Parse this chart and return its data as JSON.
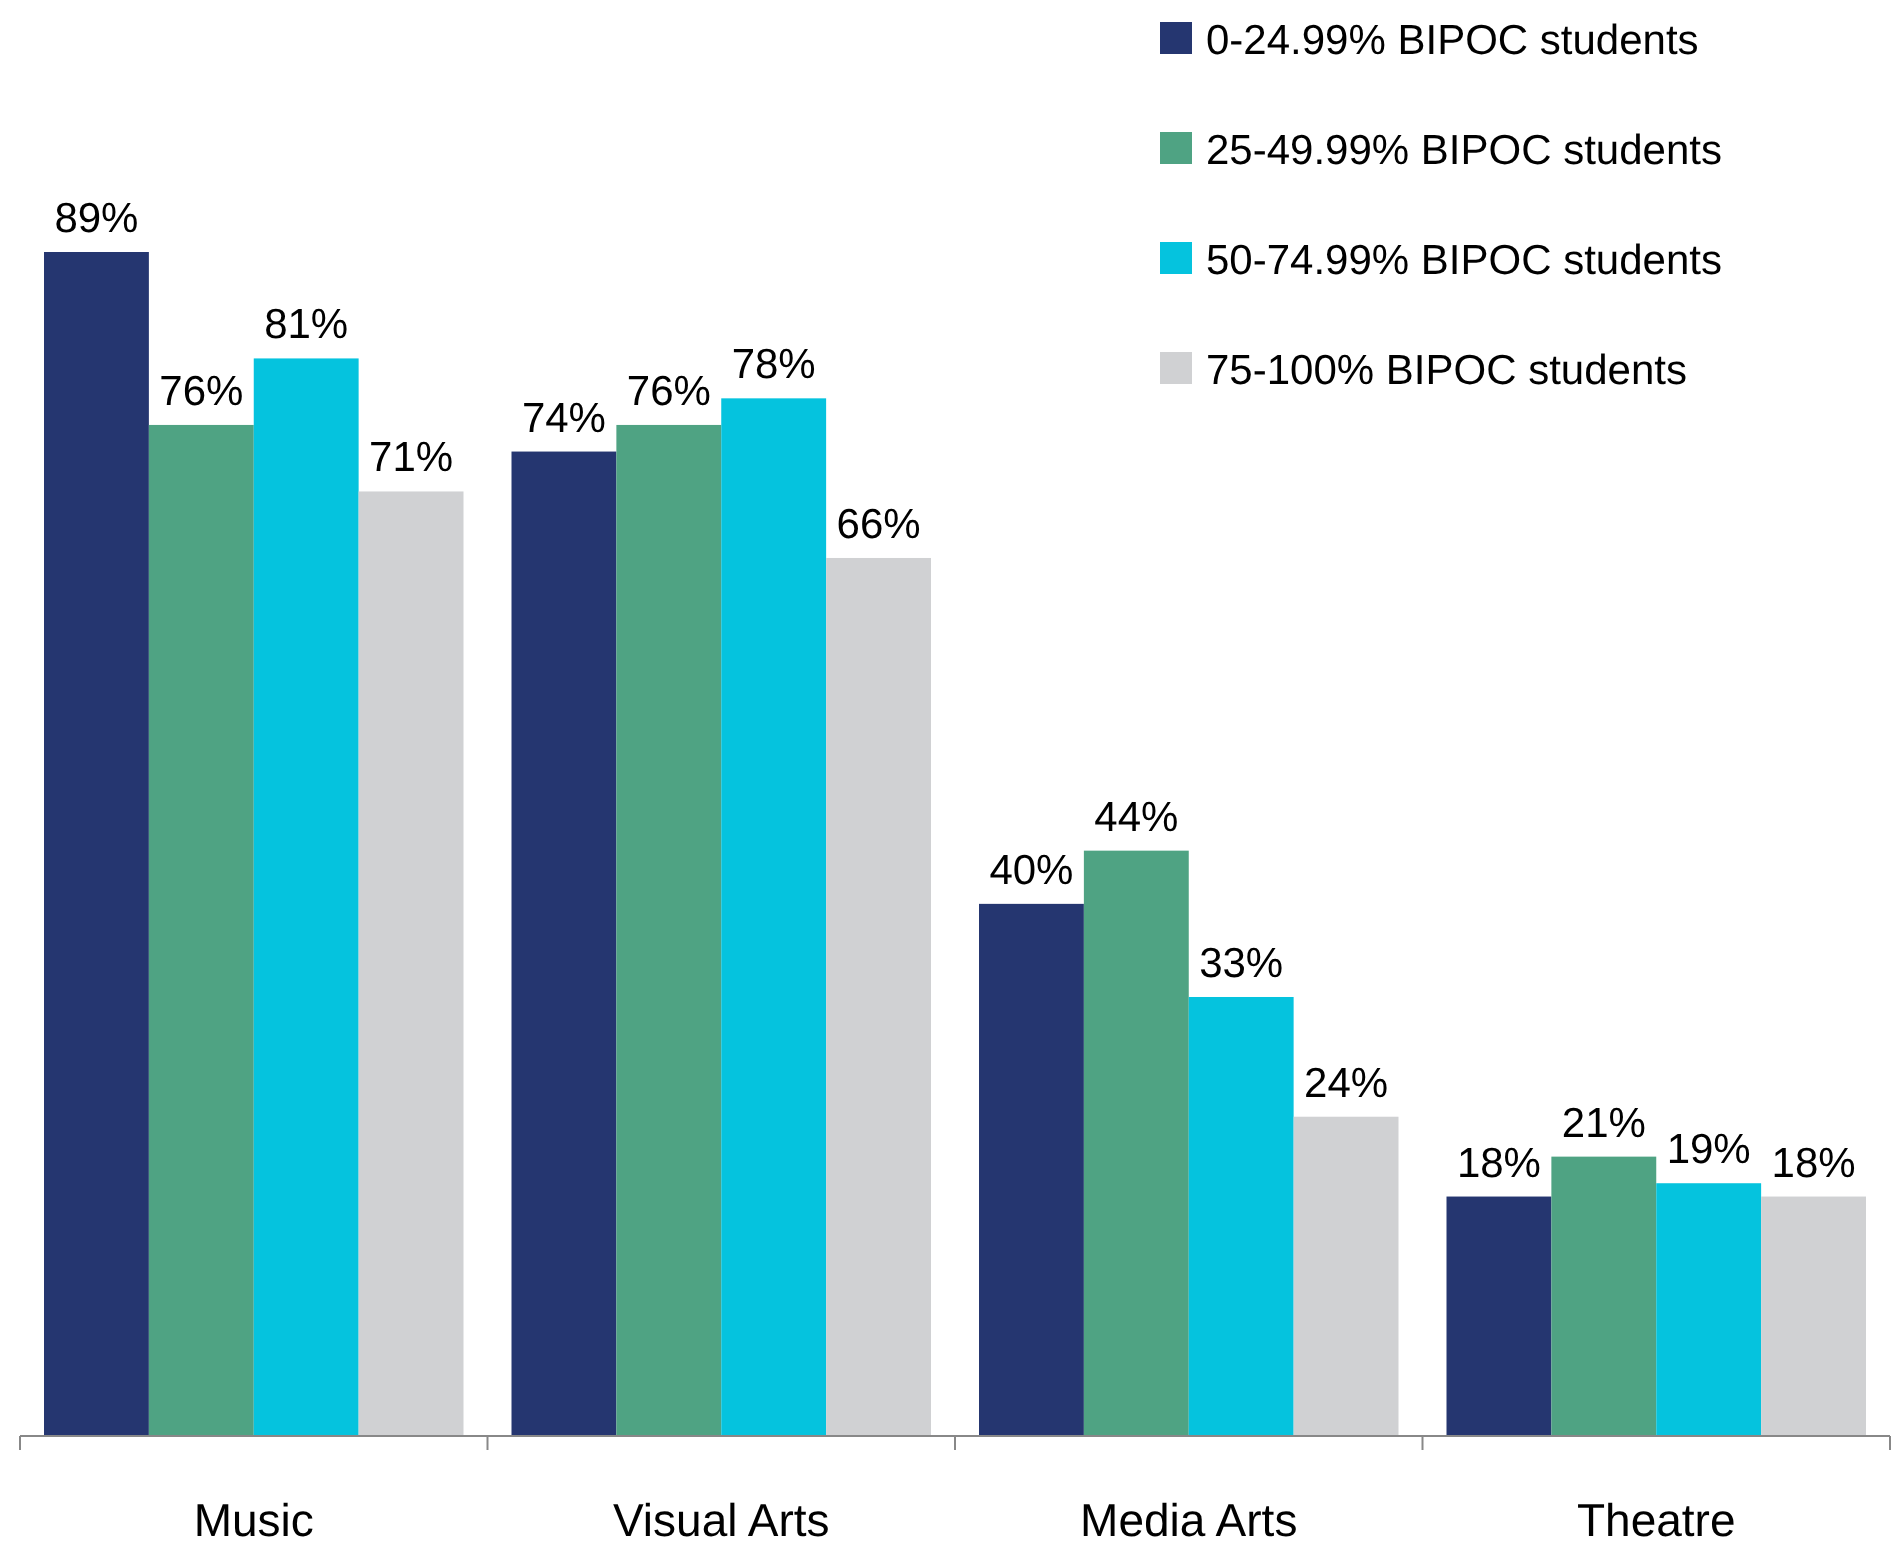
{
  "chart_data": {
    "type": "bar",
    "categories": [
      "Music",
      "Visual Arts",
      "Media Arts",
      "Theatre"
    ],
    "series": [
      {
        "name": "0-24.99% BIPOC students",
        "color": "#253670",
        "values": [
          89,
          74,
          40,
          18
        ],
        "value_labels": [
          "89%",
          "74%",
          "40%",
          "18%"
        ]
      },
      {
        "name": "25-49.99% BIPOC students",
        "color": "#4fa383",
        "values": [
          76,
          76,
          44,
          21
        ],
        "value_labels": [
          "76%",
          "76%",
          "44%",
          "21%"
        ]
      },
      {
        "name": "50-74.99% BIPOC students",
        "color": "#05c3de",
        "values": [
          81,
          78,
          33,
          19
        ],
        "value_labels": [
          "81%",
          "78%",
          "33%",
          "19%"
        ]
      },
      {
        "name": "75-100% BIPOC students",
        "color": "#d0d1d3",
        "values": [
          71,
          66,
          24,
          18
        ],
        "value_labels": [
          "71%",
          "66%",
          "24%",
          "18%"
        ]
      }
    ],
    "legend": "top right"
  }
}
